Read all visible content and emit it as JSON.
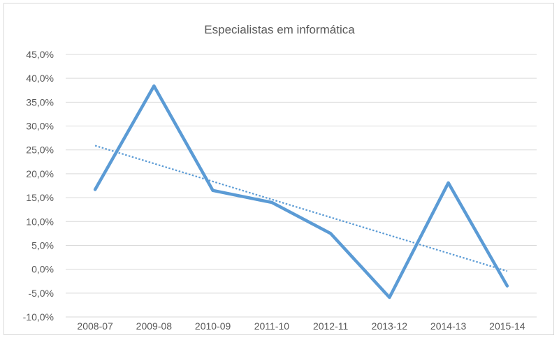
{
  "chart_data": {
    "type": "line",
    "title": "Especialistas em informática",
    "categories": [
      "2008-07",
      "2009-08",
      "2010-09",
      "2011-10",
      "2012-11",
      "2013-12",
      "2014-13",
      "2015-14"
    ],
    "series": [
      {
        "values": [
          16.7,
          38.4,
          16.5,
          14.0,
          7.5,
          -5.9,
          18.1,
          -3.5
        ],
        "color": "#5b9bd5",
        "line_style": "solid"
      }
    ],
    "trendline": {
      "type": "linear",
      "color": "#5b9bd5",
      "line_style": "dotted",
      "start": 25.9,
      "end": -0.4
    },
    "y_ticks": [
      "45,0%",
      "40,0%",
      "35,0%",
      "30,0%",
      "25,0%",
      "20,0%",
      "15,0%",
      "10,0%",
      "5,0%",
      "0,0%",
      "-5,0%",
      "-10,0%"
    ],
    "ylim": [
      -10,
      45
    ],
    "y_tick_step": 5,
    "grid": true,
    "legend": "none"
  }
}
